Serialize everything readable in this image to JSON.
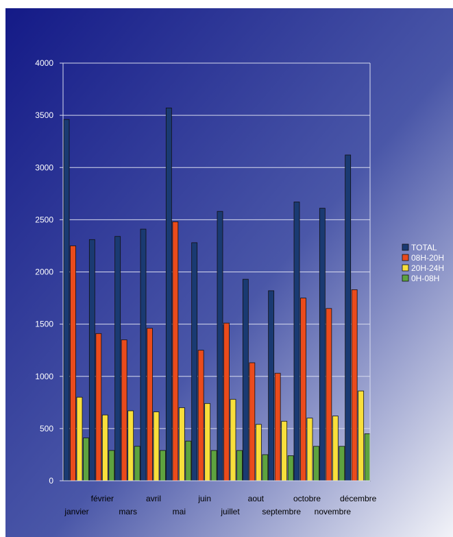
{
  "chart_data": {
    "type": "bar",
    "title": "",
    "xlabel": "",
    "ylabel": "",
    "ylim": [
      0,
      4000
    ],
    "yticks": [
      "0",
      "500",
      "1000",
      "1500",
      "2000",
      "2500",
      "3000",
      "3500",
      "4000"
    ],
    "grid": true,
    "legend_position": "right",
    "categories": [
      "janvier",
      "février",
      "mars",
      "avril",
      "mai",
      "juin",
      "juillet",
      "aout",
      "septembre",
      "octobre",
      "novembre",
      "décembre"
    ],
    "series": [
      {
        "name": "TOTAL",
        "color": "#1a3a72",
        "values": [
          3460,
          2310,
          2340,
          2410,
          3570,
          2280,
          2580,
          1930,
          1820,
          2670,
          2610,
          3120
        ]
      },
      {
        "name": "08H-20H",
        "color": "#ea4b1c",
        "values": [
          2250,
          1410,
          1350,
          1460,
          2480,
          1250,
          1510,
          1130,
          1030,
          1750,
          1650,
          1830
        ]
      },
      {
        "name": "20H-24H",
        "color": "#f8df3c",
        "values": [
          800,
          630,
          670,
          660,
          700,
          740,
          780,
          540,
          570,
          600,
          620,
          860
        ]
      },
      {
        "name": "0H-08H",
        "color": "#5ea33f",
        "values": [
          410,
          290,
          330,
          290,
          380,
          290,
          290,
          250,
          240,
          330,
          330,
          450
        ]
      }
    ]
  }
}
